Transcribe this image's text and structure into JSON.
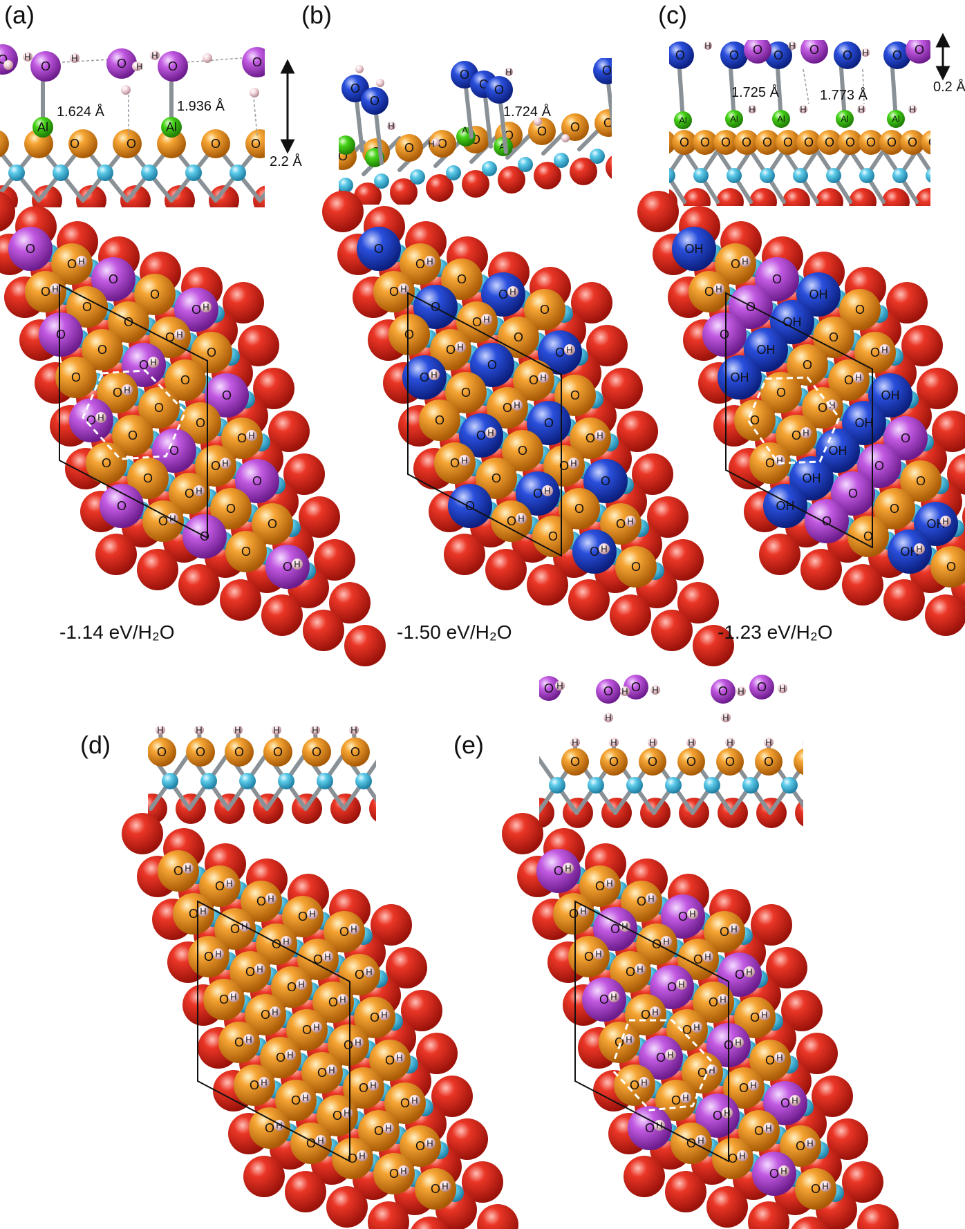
{
  "colors": {
    "surface_O": "#e58a12",
    "substrate_O": "#e42b1f",
    "Al": "#33c60b",
    "metal": "#4dc3e8",
    "H": "#f3d6dc",
    "water_O": "#b44ad6",
    "OH_O": "#1f43cf"
  },
  "panels": [
    {
      "id": "a",
      "label": "(a)",
      "distances": [
        "1.624 Å",
        "1.936 Å",
        "2.2 Å"
      ],
      "energy": "-1.14 eV/H₂O"
    },
    {
      "id": "b",
      "label": "(b)",
      "distances": [
        "1.724 Å"
      ],
      "energy": "-1.50 eV/H₂O"
    },
    {
      "id": "c",
      "label": "(c)",
      "distances": [
        "1.725 Å",
        "1.773 Å",
        "0.2 Å"
      ],
      "energy": "-1.23 eV/H₂O"
    },
    {
      "id": "d",
      "label": "(d)"
    },
    {
      "id": "e",
      "label": "(e)"
    }
  ],
  "atom_symbols": {
    "O": "O",
    "H": "H",
    "Al": "Al",
    "OH": "OH"
  }
}
